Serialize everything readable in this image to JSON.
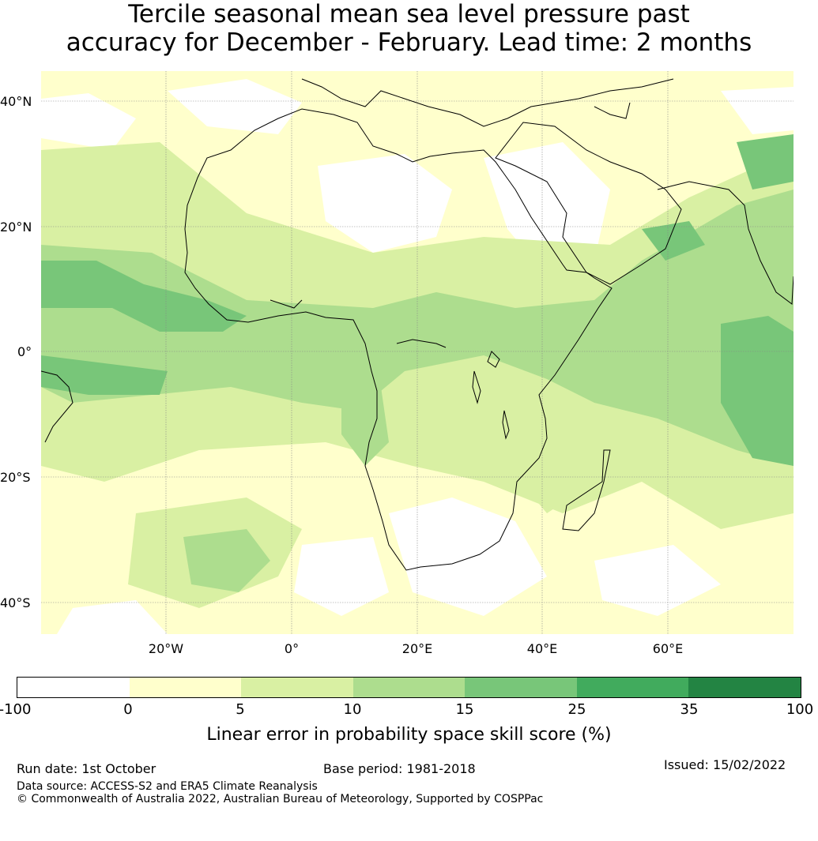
{
  "title_line1": "Tercile seasonal mean sea level pressure past",
  "title_line2": "accuracy for December - February. Lead time: 2 months",
  "lat_labels": [
    "40°N",
    "20°N",
    "0°",
    "20°S",
    "40°S"
  ],
  "lon_labels": [
    "20°W",
    "0°",
    "20°E",
    "40°E",
    "60°E"
  ],
  "colorbar": {
    "ticks": [
      "-100",
      "0",
      "5",
      "10",
      "15",
      "25",
      "35",
      "100"
    ],
    "colors": [
      "#ffffff",
      "#ffffcc",
      "#d9f0a3",
      "#addd8e",
      "#78c679",
      "#41ab5d",
      "#238443"
    ],
    "label": "Linear error in probability space skill score (%)"
  },
  "footer": {
    "run_date": "Run date: 1st October",
    "base_period": "Base period: 1981-2018",
    "issued": "Issued: 15/02/2022",
    "data_source": "Data source: ACCESS-S2 and ERA5 Climate Reanalysis",
    "copyright": "© Commonwealth of Australia 2022, Australian Bureau of Meteorology, Supported by COSPPac"
  }
}
